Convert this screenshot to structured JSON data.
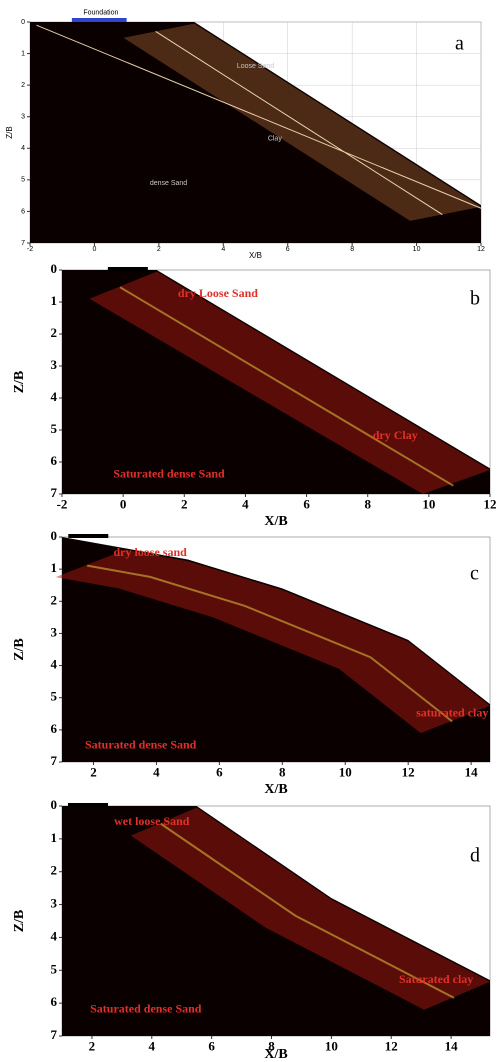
{
  "chart_data": [
    {
      "type": "field",
      "label": "a",
      "xlabel": "X/B",
      "ylabel": "Z/B",
      "xlim": [
        -2,
        12
      ],
      "ylim": [
        0,
        7
      ],
      "xticks": [
        -2,
        0,
        2,
        4,
        6,
        8,
        10,
        12
      ],
      "yticks": [
        0,
        1,
        2,
        3,
        4,
        5,
        6,
        7
      ],
      "y_inverted": true,
      "grid": true,
      "annotation_color": "#c9c9c9",
      "annotations": [
        "Foundation",
        "Loose Sand",
        "Clay",
        "dense Sand"
      ]
    },
    {
      "type": "field",
      "label": "b",
      "xlabel": "X/B",
      "ylabel": "Z/B",
      "xlim": [
        -2,
        12
      ],
      "ylim": [
        0,
        7
      ],
      "xticks": [
        -2,
        0,
        2,
        4,
        6,
        8,
        10,
        12
      ],
      "yticks": [
        0,
        1,
        2,
        3,
        4,
        5,
        6,
        7
      ],
      "y_inverted": true,
      "grid": false,
      "annotation_color": "#e0302a",
      "annotations": [
        "dry Loose Sand",
        "dry Clay",
        "Saturated dense Sand"
      ]
    },
    {
      "type": "field",
      "label": "c",
      "xlabel": "X/B",
      "ylabel": "Z/B",
      "xlim": [
        1,
        14.6
      ],
      "ylim": [
        0,
        7
      ],
      "xticks": [
        2,
        4,
        6,
        8,
        10,
        12,
        14
      ],
      "yticks": [
        0,
        1,
        2,
        3,
        4,
        5,
        6,
        7
      ],
      "y_inverted": true,
      "grid": false,
      "annotation_color": "#e0302a",
      "annotations": [
        "dry loose sand",
        "saturated clay",
        "Saturated dense Sand"
      ]
    },
    {
      "type": "field",
      "label": "d",
      "xlabel": "X/B",
      "ylabel": "Z/B",
      "xlim": [
        1,
        15.3
      ],
      "ylim": [
        0,
        7
      ],
      "xticks": [
        2,
        4,
        6,
        8,
        10,
        12,
        14
      ],
      "yticks": [
        0,
        1,
        2,
        3,
        4,
        5,
        6,
        7
      ],
      "y_inverted": true,
      "grid": false,
      "annotation_color": "#e0302a",
      "annotations": [
        "wet loose Sand",
        "Saturated clay",
        "Saturated dense Sand"
      ]
    }
  ]
}
